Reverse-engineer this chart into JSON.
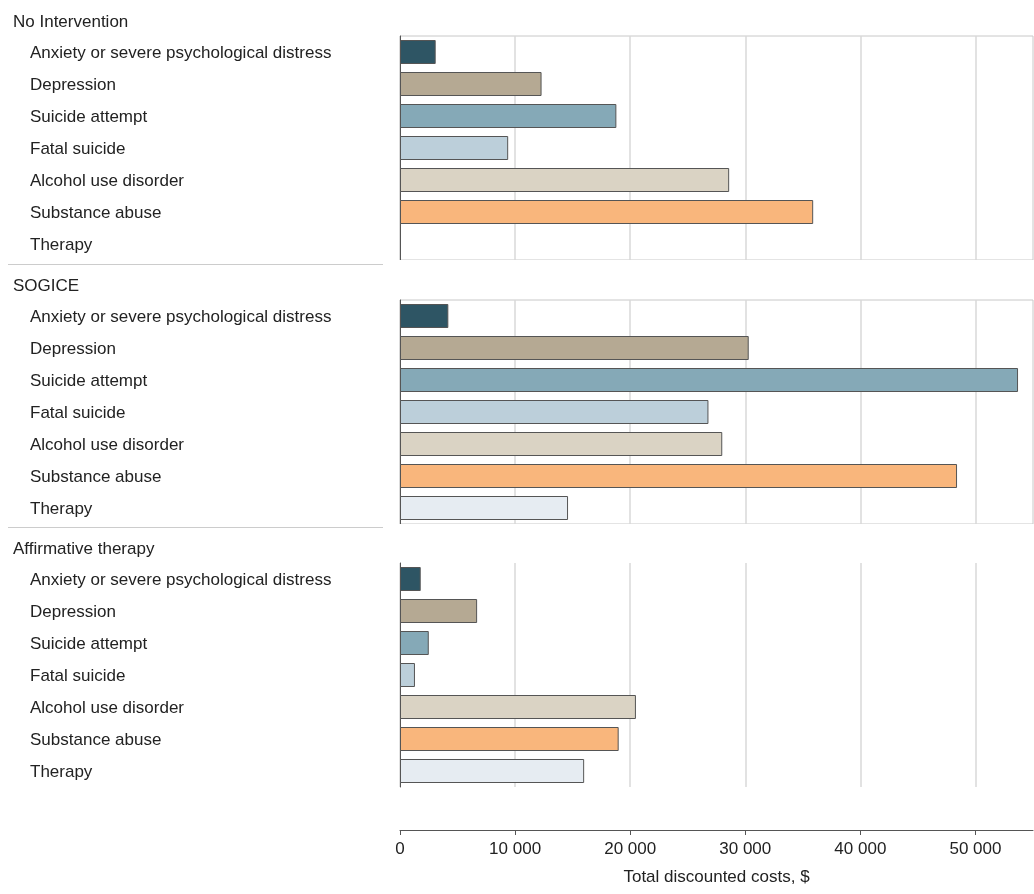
{
  "chart_data": [
    {
      "type": "bar",
      "orientation": "horizontal",
      "title": "No Intervention",
      "categories": [
        "Anxiety or severe psychological distress",
        "Depression",
        "Suicide attempt",
        "Fatal suicide",
        "Alcohol use disorder",
        "Substance abuse",
        "Therapy"
      ],
      "values": [
        3100,
        12300,
        18800,
        9400,
        28600,
        35900,
        null
      ],
      "colors": [
        "#2e5564",
        "#b5a993",
        "#85a9b7",
        "#bccfda",
        "#dad3c4",
        "#f9b67c",
        "#e6ecf2"
      ],
      "xlim": [
        0,
        55000
      ],
      "xticks": [
        0,
        10000,
        20000,
        30000,
        40000,
        50000
      ],
      "grid": "x",
      "tick_labels": "y"
    },
    {
      "type": "bar",
      "orientation": "horizontal",
      "title": "SOGICE",
      "categories": [
        "Anxiety or severe psychological distress",
        "Depression",
        "Suicide attempt",
        "Fatal suicide",
        "Alcohol use disorder",
        "Substance abuse",
        "Therapy"
      ],
      "values": [
        4200,
        30300,
        53700,
        26800,
        28000,
        48400,
        14600
      ],
      "colors": [
        "#2e5564",
        "#b5a993",
        "#85a9b7",
        "#bccfda",
        "#dad3c4",
        "#f9b67c",
        "#e6ecf2"
      ],
      "xlim": [
        0,
        55000
      ],
      "xticks": [
        0,
        10000,
        20000,
        30000,
        40000,
        50000
      ],
      "grid": "x",
      "tick_labels": "y"
    },
    {
      "type": "bar",
      "orientation": "horizontal",
      "title": "Affirmative therapy",
      "xlabel": "Total discounted costs, $",
      "categories": [
        "Anxiety or severe psychological distress",
        "Depression",
        "Suicide attempt",
        "Fatal suicide",
        "Alcohol use disorder",
        "Substance abuse",
        "Therapy"
      ],
      "values": [
        1800,
        6700,
        2500,
        1300,
        20500,
        19000,
        16000
      ],
      "colors": [
        "#2e5564",
        "#b5a993",
        "#85a9b7",
        "#bccfda",
        "#dad3c4",
        "#f9b67c",
        "#e6ecf2"
      ],
      "xlim": [
        0,
        55000
      ],
      "xticks": [
        {
          "value": 0,
          "label": "0"
        },
        {
          "value": 10000,
          "label": "10 000"
        },
        {
          "value": 20000,
          "label": "20 000"
        },
        {
          "value": 30000,
          "label": "30 000"
        },
        {
          "value": 40000,
          "label": "40 000"
        },
        {
          "value": 50000,
          "label": "50 000"
        }
      ],
      "grid": "x"
    }
  ]
}
